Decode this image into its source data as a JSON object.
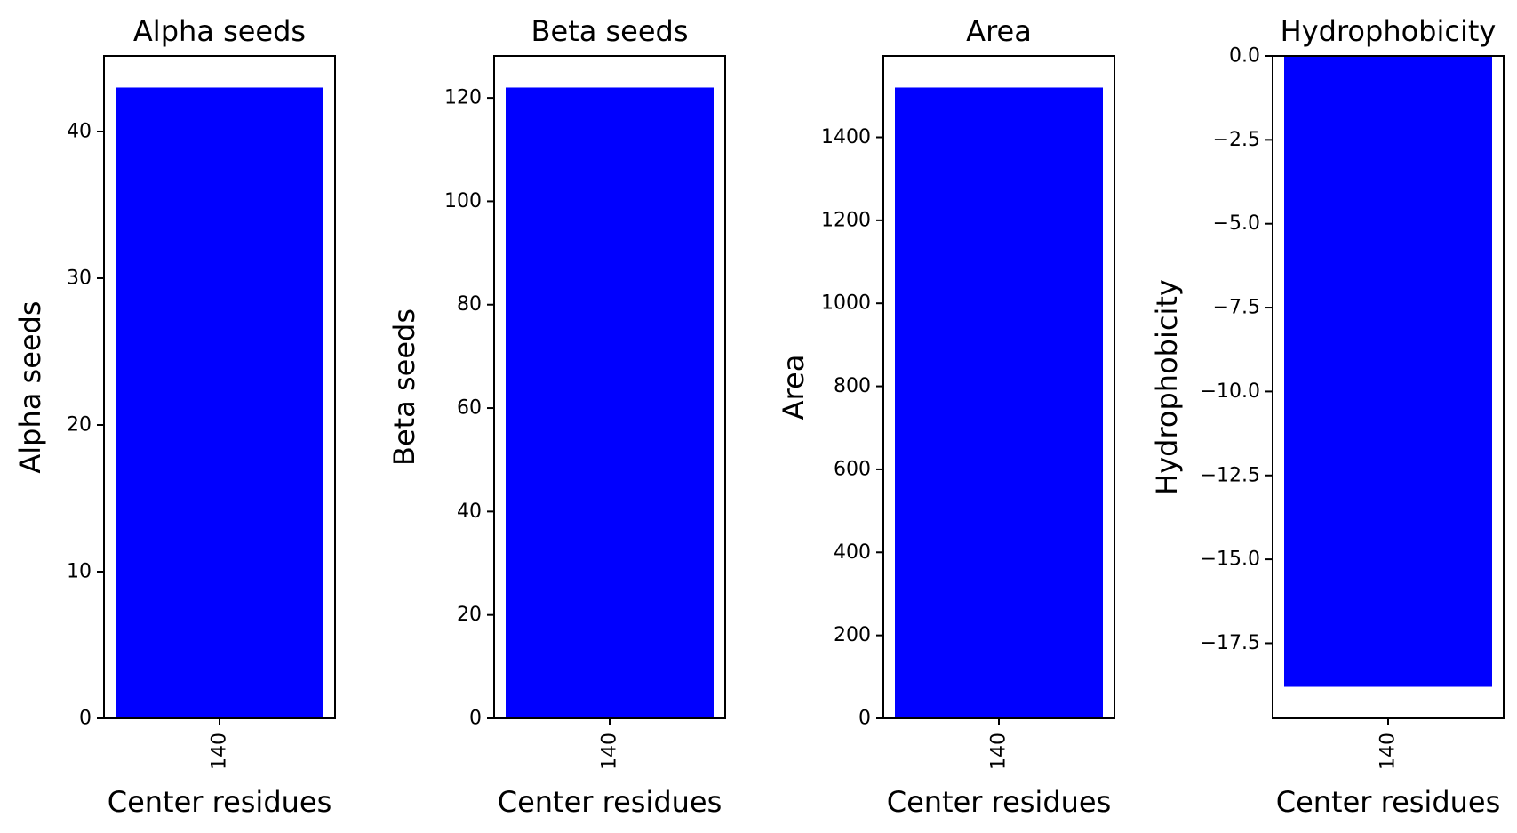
{
  "chart_data": [
    {
      "type": "bar",
      "title": "Alpha seeds",
      "xlabel": "Center residues",
      "ylabel": "Alpha seeds",
      "categories": [
        "140"
      ],
      "values": [
        43
      ],
      "ylim": [
        0,
        45.15
      ],
      "yticks": [
        0,
        10,
        20,
        30,
        40
      ],
      "ytick_labels": [
        "0",
        "10",
        "20",
        "30",
        "40"
      ],
      "bar_color": "#0000ff",
      "grid": false
    },
    {
      "type": "bar",
      "title": "Beta seeds",
      "xlabel": "Center residues",
      "ylabel": "Beta seeds",
      "categories": [
        "140"
      ],
      "values": [
        122
      ],
      "ylim": [
        0,
        128.1
      ],
      "yticks": [
        0,
        20,
        40,
        60,
        80,
        100,
        120
      ],
      "ytick_labels": [
        "0",
        "20",
        "40",
        "60",
        "80",
        "100",
        "120"
      ],
      "bar_color": "#0000ff",
      "grid": false
    },
    {
      "type": "bar",
      "title": "Area",
      "xlabel": "Center residues",
      "ylabel": "Area",
      "categories": [
        "140"
      ],
      "values": [
        1520
      ],
      "ylim": [
        0,
        1596
      ],
      "yticks": [
        0,
        200,
        400,
        600,
        800,
        1000,
        1200,
        1400
      ],
      "ytick_labels": [
        "0",
        "200",
        "400",
        "600",
        "800",
        "1000",
        "1200",
        "1400"
      ],
      "bar_color": "#0000ff",
      "grid": false
    },
    {
      "type": "bar",
      "title": "Hydrophobicity",
      "xlabel": "Center residues",
      "ylabel": "Hydrophobicity",
      "categories": [
        "140"
      ],
      "values": [
        -18.8
      ],
      "ylim": [
        -19.74,
        0
      ],
      "yticks": [
        0,
        -2.5,
        -5,
        -7.5,
        -10,
        -12.5,
        -15,
        -17.5
      ],
      "ytick_labels": [
        "0.0",
        "−2.5",
        "−5.0",
        "−7.5",
        "−10.0",
        "−12.5",
        "−15.0",
        "−17.5"
      ],
      "bar_color": "#0000ff",
      "grid": false
    }
  ]
}
